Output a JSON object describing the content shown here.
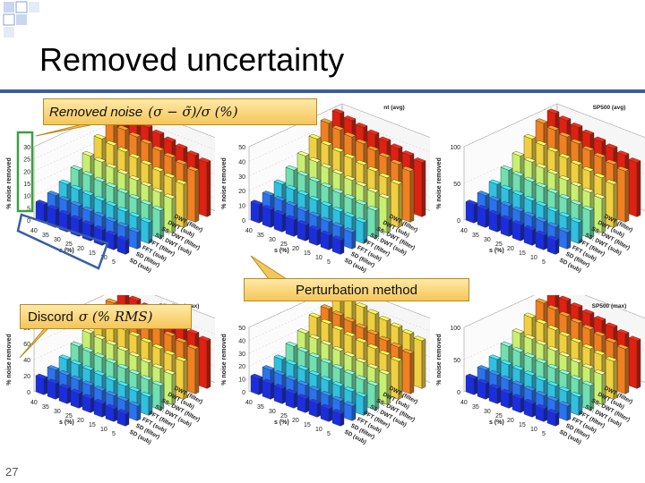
{
  "slide": {
    "title": "Removed uncertainty",
    "page_number": "27"
  },
  "callouts": {
    "removed_noise_label": "Removed noise",
    "removed_noise_formula": "(σ − σ̃)/σ (%)",
    "perturbation_label": "Perturbation method",
    "discord_label": "Discord",
    "discord_formula": "σ (% RMS)"
  },
  "charts": {
    "zlabel": "% noise removed",
    "xlabel": "s (%)",
    "s_ticks": [
      "40",
      "35",
      "30",
      "25",
      "20",
      "15",
      "10",
      "5"
    ],
    "methods": [
      "SD (sub)",
      "SD (filter)",
      "FFT (sub)",
      "FFT (filter)",
      "SS: DWT (sub)",
      "SS: DWT (filter)",
      "DWT (sub)",
      "DWT (filter)"
    ],
    "panel_titles": [
      "",
      "nt (avg)",
      "SP500 (avg)",
      "Dilerline (max)",
      "",
      "SP500 (max)"
    ]
  },
  "chart_data": [
    {
      "type": "bar3d",
      "zlabel": "% noise removed",
      "zlim": [
        0,
        30
      ],
      "zticks": [
        "0",
        "5",
        "10",
        "15",
        "20",
        "25",
        "30"
      ]
    },
    {
      "type": "bar3d",
      "zlabel": "% noise removed",
      "zlim": [
        0,
        50
      ],
      "zticks": [
        "0",
        "10",
        "20",
        "30",
        "40",
        "50"
      ]
    },
    {
      "type": "bar3d",
      "zlabel": "% noise removed",
      "zlim": [
        0,
        100
      ],
      "zticks": [
        "0",
        "50",
        "100"
      ]
    },
    {
      "type": "bar3d",
      "zlabel": "% noise removed",
      "zlim": [
        0,
        80
      ],
      "zticks": [
        "0",
        "20",
        "40",
        "60",
        "80"
      ]
    },
    {
      "type": "bar3d",
      "zlabel": "% noise removed",
      "zlim": [
        0,
        50
      ],
      "zticks": [
        "0",
        "10",
        "20",
        "30",
        "40",
        "50"
      ]
    },
    {
      "type": "bar3d",
      "zlabel": "% noise removed",
      "zlim": [
        0,
        100
      ],
      "zticks": [
        "0",
        "50",
        "100"
      ]
    }
  ],
  "colors": {
    "accent_rule": "#3a5ea6",
    "bar_palette": [
      "#1a2ee0",
      "#2a73f0",
      "#30c0e0",
      "#70e0b0",
      "#c8f070",
      "#f0d040",
      "#f08020",
      "#e02010"
    ]
  }
}
